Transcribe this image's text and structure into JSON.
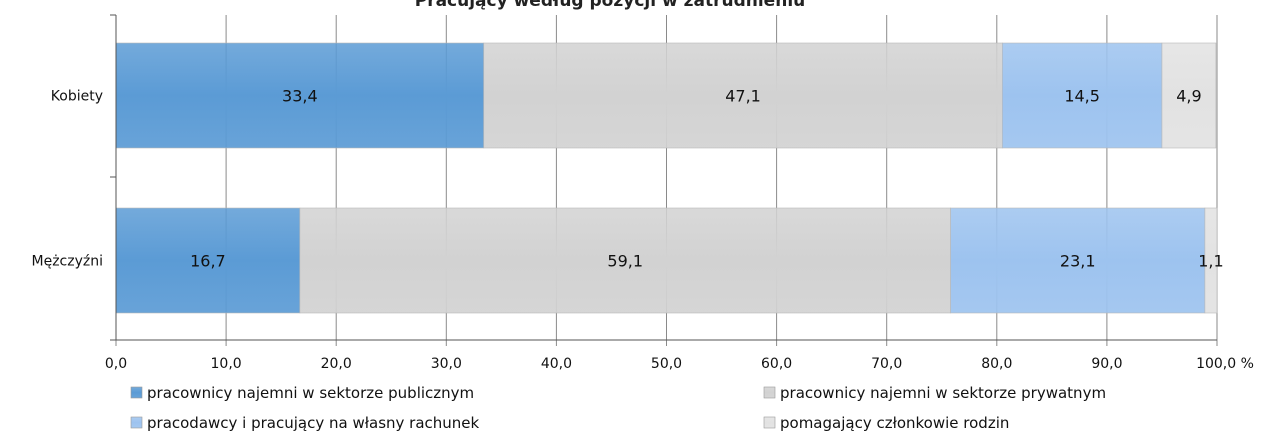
{
  "chart_data": {
    "type": "bar",
    "orientation": "horizontal",
    "stacked": true,
    "title": "Pracujący według pozycji w zatrudnieniu",
    "categories": [
      "Kobiety",
      "Mężczyźni"
    ],
    "series": [
      {
        "name": "pracownicy najemni w sektorze publicznym",
        "values": [
          33.4,
          16.7
        ],
        "labels": [
          "33,4",
          "16,7"
        ],
        "color": "#5b9bd5"
      },
      {
        "name": "pracownicy najemni w sektorze prywatnym",
        "values": [
          47.1,
          59.1
        ],
        "labels": [
          "47,1",
          "59,1"
        ],
        "color": "#d2d2d2"
      },
      {
        "name": "pracodawcy i pracujący na własny rachunek",
        "values": [
          14.5,
          23.1
        ],
        "labels": [
          "14,5",
          "23,1"
        ],
        "color": "#9dc3ef"
      },
      {
        "name": "pomagający członkowie rodzin",
        "values": [
          4.9,
          1.1
        ],
        "labels": [
          "4,9",
          "1,1"
        ],
        "color": "#e2e2e2"
      }
    ],
    "xlim": [
      0,
      100
    ],
    "xticks": [
      0,
      10,
      20,
      30,
      40,
      50,
      60,
      70,
      80,
      90,
      100
    ],
    "xtick_labels": [
      "0,0",
      "10,0",
      "20,0",
      "30,0",
      "40,0",
      "50,0",
      "60,0",
      "70,0",
      "80,0",
      "90,0",
      "100,0 %"
    ],
    "grid": true,
    "legend_position": "bottom"
  }
}
